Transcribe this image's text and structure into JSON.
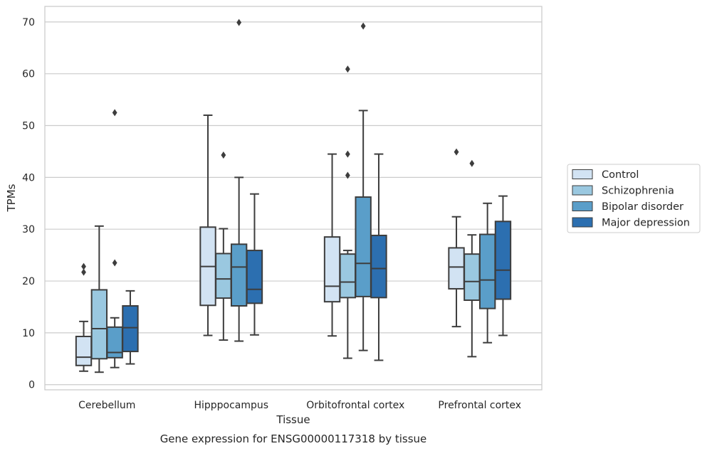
{
  "chart_data": {
    "type": "box",
    "caption": "Gene expression for ENSG00000117318 by tissue",
    "xlabel": "Tissue",
    "ylabel": "TPMs",
    "ylim": [
      -1,
      73
    ],
    "yticks": [
      0,
      10,
      20,
      30,
      40,
      50,
      60,
      70
    ],
    "grid": "horizontal",
    "legend_position": "right",
    "categories": [
      "Cerebellum",
      "Hipppocampus",
      "Orbitofrontal cortex",
      "Prefrontal cortex"
    ],
    "series": [
      {
        "name": "Control",
        "color": "#d2e3f3",
        "boxes": [
          {
            "whisker_low": 2.6,
            "q1": 3.7,
            "median": 5.3,
            "q3": 9.3,
            "whisker_high": 12.2,
            "outliers": [
              22.8,
              21.7
            ]
          },
          {
            "whisker_low": 9.5,
            "q1": 15.3,
            "median": 22.8,
            "q3": 30.4,
            "whisker_high": 52.0,
            "outliers": []
          },
          {
            "whisker_low": 9.4,
            "q1": 16.0,
            "median": 19.0,
            "q3": 28.5,
            "whisker_high": 44.5,
            "outliers": []
          },
          {
            "whisker_low": 11.2,
            "q1": 18.5,
            "median": 22.7,
            "q3": 26.4,
            "whisker_high": 32.4,
            "outliers": [
              44.9
            ]
          }
        ]
      },
      {
        "name": "Schizophrenia",
        "color": "#9ac8e0",
        "boxes": [
          {
            "whisker_low": 2.4,
            "q1": 5.0,
            "median": 10.8,
            "q3": 18.3,
            "whisker_high": 30.6,
            "outliers": []
          },
          {
            "whisker_low": 8.6,
            "q1": 16.7,
            "median": 20.4,
            "q3": 25.3,
            "whisker_high": 30.1,
            "outliers": [
              44.3
            ]
          },
          {
            "whisker_low": 5.1,
            "q1": 16.8,
            "median": 19.8,
            "q3": 25.2,
            "whisker_high": 25.9,
            "outliers": [
              60.9,
              44.5,
              40.4
            ]
          },
          {
            "whisker_low": 5.4,
            "q1": 16.3,
            "median": 19.9,
            "q3": 25.2,
            "whisker_high": 28.9,
            "outliers": [
              42.7
            ]
          }
        ]
      },
      {
        "name": "Bipolar disorder",
        "color": "#5a9ec9",
        "boxes": [
          {
            "whisker_low": 3.3,
            "q1": 5.2,
            "median": 6.2,
            "q3": 11.1,
            "whisker_high": 12.9,
            "outliers": [
              52.5,
              23.5
            ]
          },
          {
            "whisker_low": 8.4,
            "q1": 15.2,
            "median": 22.7,
            "q3": 27.1,
            "whisker_high": 40.0,
            "outliers": [
              69.9
            ]
          },
          {
            "whisker_low": 6.6,
            "q1": 17.0,
            "median": 23.4,
            "q3": 36.2,
            "whisker_high": 52.9,
            "outliers": [
              69.2
            ]
          },
          {
            "whisker_low": 8.1,
            "q1": 14.7,
            "median": 20.2,
            "q3": 29.0,
            "whisker_high": 35.0,
            "outliers": []
          }
        ]
      },
      {
        "name": "Major depression",
        "color": "#2c6fb0",
        "boxes": [
          {
            "whisker_low": 4.0,
            "q1": 6.4,
            "median": 11.0,
            "q3": 15.2,
            "whisker_high": 18.1,
            "outliers": []
          },
          {
            "whisker_low": 9.6,
            "q1": 15.7,
            "median": 18.4,
            "q3": 25.9,
            "whisker_high": 36.8,
            "outliers": []
          },
          {
            "whisker_low": 4.7,
            "q1": 16.8,
            "median": 22.4,
            "q3": 28.8,
            "whisker_high": 44.5,
            "outliers": []
          },
          {
            "whisker_low": 9.5,
            "q1": 16.5,
            "median": 22.1,
            "q3": 31.5,
            "whisker_high": 36.4,
            "outliers": []
          }
        ]
      }
    ]
  }
}
